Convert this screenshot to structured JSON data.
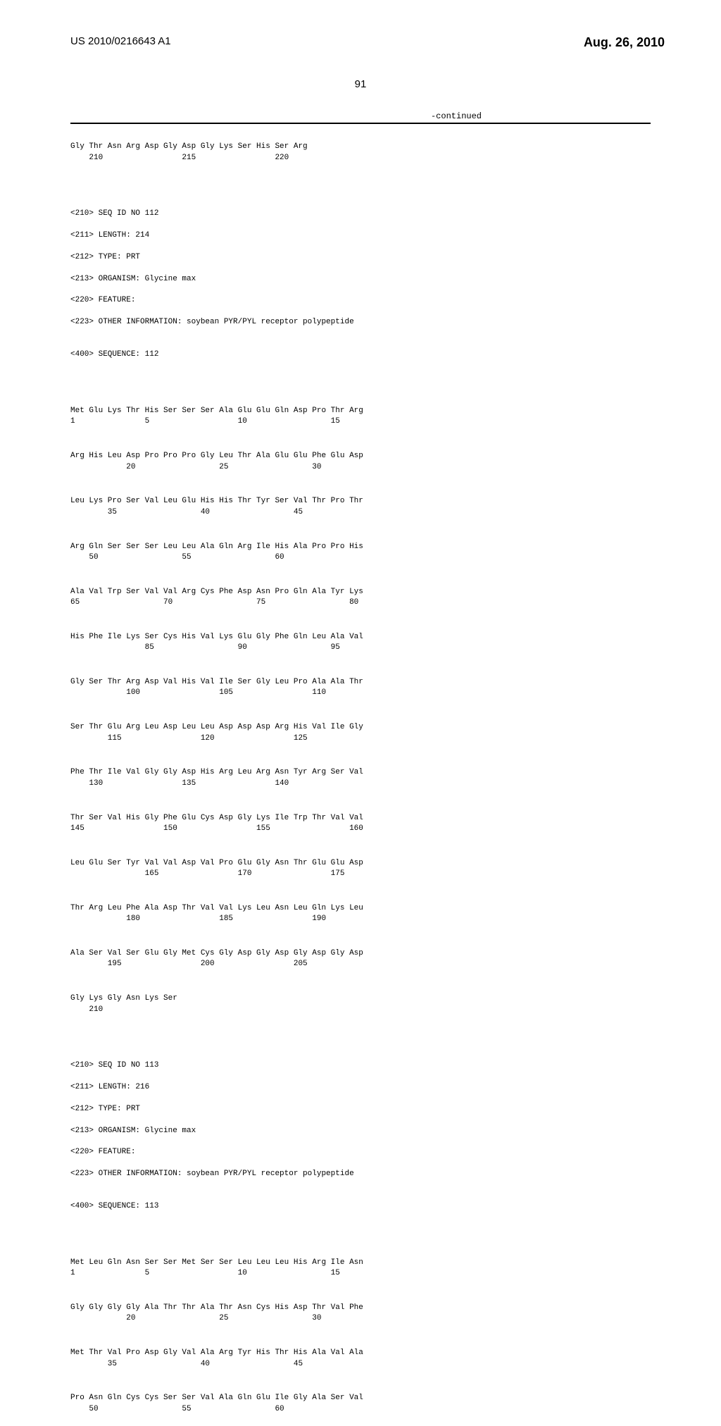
{
  "header": {
    "pub_number": "US 2010/0216643 A1",
    "pub_date": "Aug. 26, 2010"
  },
  "page_number": "91",
  "continued_label": "-continued",
  "seq_prev_tail": {
    "residues": "Gly Thr Asn Arg Asp Gly Asp Gly Lys Ser His Ser Arg",
    "numbers": "    210                 215                 220"
  },
  "seq112": {
    "header": [
      "<210> SEQ ID NO 112",
      "<211> LENGTH: 214",
      "<212> TYPE: PRT",
      "<213> ORGANISM: Glycine max",
      "<220> FEATURE:",
      "<223> OTHER INFORMATION: soybean PYR/PYL receptor polypeptide",
      "",
      "<400> SEQUENCE: 112"
    ],
    "rows": [
      {
        "res": "Met Glu Lys Thr His Ser Ser Ser Ala Glu Glu Gln Asp Pro Thr Arg",
        "num": "1               5                   10                  15"
      },
      {
        "res": "Arg His Leu Asp Pro Pro Pro Gly Leu Thr Ala Glu Glu Phe Glu Asp",
        "num": "            20                  25                  30"
      },
      {
        "res": "Leu Lys Pro Ser Val Leu Glu His His Thr Tyr Ser Val Thr Pro Thr",
        "num": "        35                  40                  45"
      },
      {
        "res": "Arg Gln Ser Ser Ser Leu Leu Ala Gln Arg Ile His Ala Pro Pro His",
        "num": "    50                  55                  60"
      },
      {
        "res": "Ala Val Trp Ser Val Val Arg Cys Phe Asp Asn Pro Gln Ala Tyr Lys",
        "num": "65                  70                  75                  80"
      },
      {
        "res": "His Phe Ile Lys Ser Cys His Val Lys Glu Gly Phe Gln Leu Ala Val",
        "num": "                85                  90                  95"
      },
      {
        "res": "Gly Ser Thr Arg Asp Val His Val Ile Ser Gly Leu Pro Ala Ala Thr",
        "num": "            100                 105                 110"
      },
      {
        "res": "Ser Thr Glu Arg Leu Asp Leu Leu Asp Asp Asp Arg His Val Ile Gly",
        "num": "        115                 120                 125"
      },
      {
        "res": "Phe Thr Ile Val Gly Gly Asp His Arg Leu Arg Asn Tyr Arg Ser Val",
        "num": "    130                 135                 140"
      },
      {
        "res": "Thr Ser Val His Gly Phe Glu Cys Asp Gly Lys Ile Trp Thr Val Val",
        "num": "145                 150                 155                 160"
      },
      {
        "res": "Leu Glu Ser Tyr Val Val Asp Val Pro Glu Gly Asn Thr Glu Glu Asp",
        "num": "                165                 170                 175"
      },
      {
        "res": "Thr Arg Leu Phe Ala Asp Thr Val Val Lys Leu Asn Leu Gln Lys Leu",
        "num": "            180                 185                 190"
      },
      {
        "res": "Ala Ser Val Ser Glu Gly Met Cys Gly Asp Gly Asp Gly Asp Gly Asp",
        "num": "        195                 200                 205"
      },
      {
        "res": "Gly Lys Gly Asn Lys Ser",
        "num": "    210"
      }
    ]
  },
  "seq113": {
    "header": [
      "<210> SEQ ID NO 113",
      "<211> LENGTH: 216",
      "<212> TYPE: PRT",
      "<213> ORGANISM: Glycine max",
      "<220> FEATURE:",
      "<223> OTHER INFORMATION: soybean PYR/PYL receptor polypeptide",
      "",
      "<400> SEQUENCE: 113"
    ],
    "rows": [
      {
        "res": "Met Leu Gln Asn Ser Ser Met Ser Ser Leu Leu Leu His Arg Ile Asn",
        "num": "1               5                   10                  15"
      },
      {
        "res": "Gly Gly Gly Gly Ala Thr Thr Ala Thr Asn Cys His Asp Thr Val Phe",
        "num": "            20                  25                  30"
      },
      {
        "res": "Met Thr Val Pro Asp Gly Val Ala Arg Tyr His Thr His Ala Val Ala",
        "num": "        35                  40                  45"
      },
      {
        "res": "Pro Asn Gln Cys Cys Ser Ser Val Ala Gln Glu Ile Gly Ala Ser Val",
        "num": "    50                  55                  60"
      }
    ]
  }
}
